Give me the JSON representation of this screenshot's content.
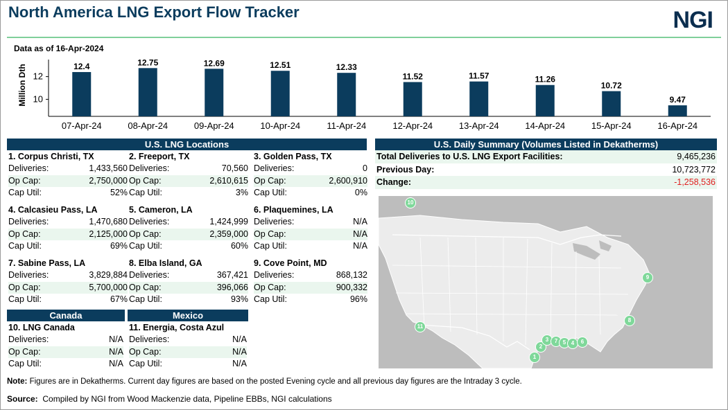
{
  "header": {
    "title": "North America LNG Export Flow Tracker",
    "logo": "NGI",
    "as_of": "Data as of 16-Apr-2024"
  },
  "chart_data": {
    "type": "bar",
    "categories": [
      "07-Apr-24",
      "08-Apr-24",
      "09-Apr-24",
      "10-Apr-24",
      "11-Apr-24",
      "12-Apr-24",
      "13-Apr-24",
      "14-Apr-24",
      "15-Apr-24",
      "16-Apr-24"
    ],
    "values": [
      12.4,
      12.75,
      12.69,
      12.51,
      12.33,
      11.52,
      11.57,
      11.26,
      10.72,
      9.47
    ],
    "value_labels": [
      "12.4",
      "12.75",
      "12.69",
      "12.51",
      "12.33",
      "11.52",
      "11.57",
      "11.26",
      "10.72",
      "9.47"
    ],
    "ylabel": "Million Dth",
    "yticks": [
      10,
      12
    ],
    "ylim": [
      8.5,
      13.5
    ],
    "bar_color": "#0b3c5d"
  },
  "us_locations": {
    "header": "U.S. LNG Locations",
    "labels": {
      "deliveries": "Deliveries:",
      "op_cap": "Op Cap:",
      "cap_util": "Cap Util:"
    },
    "items": [
      {
        "name": "1. Corpus Christi, TX",
        "deliveries": "1,433,560",
        "op_cap": "2,750,000",
        "cap_util": "52%"
      },
      {
        "name": "2. Freeport, TX",
        "deliveries": "70,560",
        "op_cap": "2,610,615",
        "cap_util": "3%"
      },
      {
        "name": "3. Golden Pass, TX",
        "deliveries": "0",
        "op_cap": "2,600,910",
        "cap_util": "0%"
      },
      {
        "name": "4. Calcasieu Pass, LA",
        "deliveries": "1,470,680",
        "op_cap": "2,125,000",
        "cap_util": "69%"
      },
      {
        "name": "5. Cameron, LA",
        "deliveries": "1,424,999",
        "op_cap": "2,359,000",
        "cap_util": "60%"
      },
      {
        "name": "6. Plaquemines, LA",
        "deliveries": "N/A",
        "op_cap": "N/A",
        "cap_util": "N/A"
      },
      {
        "name": "7. Sabine Pass, LA",
        "deliveries": "3,829,884",
        "op_cap": "5,700,000",
        "cap_util": "67%"
      },
      {
        "name": "8. Elba Island, GA",
        "deliveries": "367,421",
        "op_cap": "396,066",
        "cap_util": "93%"
      },
      {
        "name": "9. Cove Point, MD",
        "deliveries": "868,132",
        "op_cap": "900,332",
        "cap_util": "96%"
      }
    ]
  },
  "canada": {
    "header": "Canada",
    "item": {
      "name": "10. LNG Canada",
      "deliveries": "N/A",
      "op_cap": "N/A",
      "cap_util": "N/A"
    }
  },
  "mexico": {
    "header": "Mexico",
    "item": {
      "name": "11. Energia, Costa Azul",
      "deliveries": "N/A",
      "op_cap": "N/A",
      "cap_util": "N/A"
    }
  },
  "summary": {
    "header": "U.S. Daily Summary (Volumes Listed in Dekatherms)",
    "rows": [
      {
        "label": "Total Deliveries to U.S. LNG Export Facilities:",
        "value": "9,465,236"
      },
      {
        "label": "Previous Day:",
        "value": "10,723,772"
      },
      {
        "label": "Change:",
        "value": "-1,258,536"
      }
    ],
    "change_color": "#e02020"
  },
  "map": {
    "markers": [
      "1",
      "2",
      "3",
      "4",
      "5",
      "6",
      "7",
      "8",
      "9",
      "10",
      "11"
    ],
    "marker_color": "#7fd89a"
  },
  "footer": {
    "note_label": "Note:",
    "note": "Figures are in Dekatherms. Current day figures are based on the posted Evening cycle and all previous day figures are the Intraday 3 cycle.",
    "source_label": "Source:",
    "source": "Compiled by NGI from Wood Mackenzie data, Pipeline EBBs, NGI calculations"
  }
}
